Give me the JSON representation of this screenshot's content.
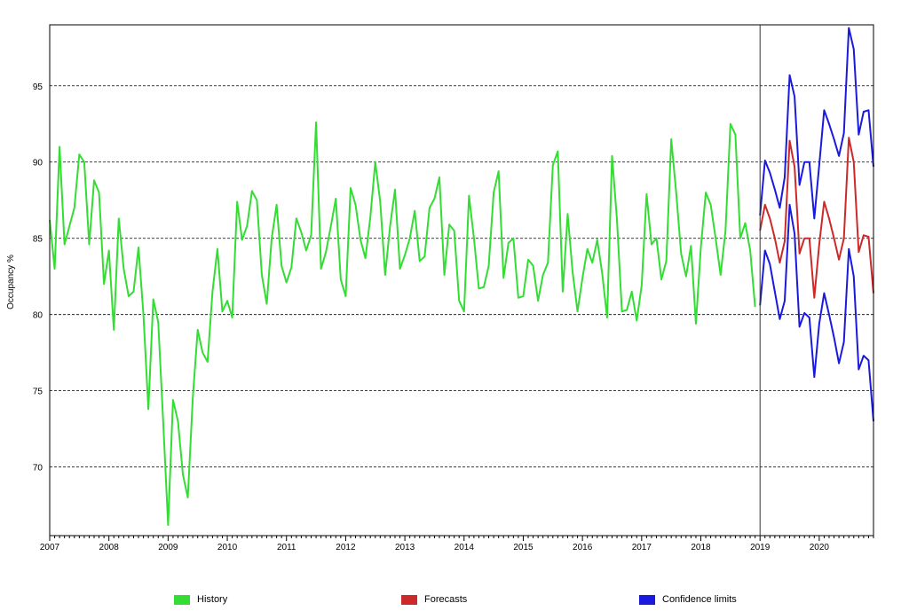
{
  "chart_data": {
    "type": "line",
    "ylabel": "Occupancy %",
    "xlabel": "",
    "x_start": "2007-01",
    "frequency": "monthly",
    "ylim": [
      65.5,
      99.0
    ],
    "yticks": [
      70,
      75,
      80,
      85,
      90,
      95
    ],
    "xticks": [
      "2007",
      "2008",
      "2009",
      "2010",
      "2011",
      "2012",
      "2013",
      "2014",
      "2015",
      "2016",
      "2017",
      "2018",
      "2019",
      "2020"
    ],
    "grid": "horizontal dashed",
    "forecast_boundary": "2019-01",
    "series": [
      {
        "name": "History",
        "color": "#33dd33",
        "x_start": "2007-01",
        "values": [
          86.2,
          83.0,
          91.0,
          84.6,
          85.8,
          87.0,
          90.5,
          90.0,
          84.6,
          88.8,
          88.0,
          82.0,
          84.2,
          79.0,
          86.3,
          83.0,
          81.2,
          81.5,
          84.4,
          80.0,
          73.8,
          81.0,
          79.5,
          73.0,
          66.2,
          74.4,
          73.0,
          69.5,
          68.0,
          74.5,
          79.0,
          77.5,
          76.9,
          81.5,
          84.3,
          80.2,
          80.9,
          79.8,
          87.4,
          84.9,
          85.8,
          88.1,
          87.5,
          82.6,
          80.7,
          85.0,
          87.2,
          83.2,
          82.1,
          83.1,
          86.3,
          85.4,
          84.2,
          85.2,
          92.6,
          83.0,
          84.1,
          85.8,
          87.6,
          82.3,
          81.2,
          88.3,
          87.2,
          84.9,
          83.7,
          86.4,
          90.0,
          87.4,
          82.6,
          85.8,
          88.2,
          83.0,
          83.9,
          85.0,
          86.8,
          83.5,
          83.8,
          87.0,
          87.6,
          89.0,
          82.6,
          85.9,
          85.5,
          80.9,
          80.2,
          87.8,
          85.0,
          81.7,
          81.8,
          83.2,
          88.0,
          89.4,
          82.4,
          84.7,
          85.0,
          81.1,
          81.2,
          83.6,
          83.2,
          80.9,
          82.6,
          83.4,
          89.8,
          90.7,
          81.5,
          86.6,
          82.8,
          80.2,
          82.4,
          84.3,
          83.4,
          84.9,
          82.7,
          79.8,
          90.4,
          86.2,
          80.2,
          80.3,
          81.5,
          79.6,
          81.9,
          87.9,
          84.6,
          85.0,
          82.3,
          83.5,
          91.5,
          88.0,
          84.0,
          82.5,
          84.5,
          79.4,
          84.4,
          88.0,
          87.2,
          85.0,
          82.6,
          85.5,
          92.5,
          91.8,
          85.0,
          86.0,
          84.2,
          80.5
        ]
      },
      {
        "name": "Forecasts",
        "color": "#cc2a2a",
        "x_start": "2019-01",
        "values": [
          85.5,
          87.2,
          86.3,
          85.0,
          83.4,
          84.8,
          91.4,
          89.7,
          84.0,
          85.0,
          85.0,
          81.1,
          84.6,
          87.4,
          86.3,
          85.0,
          83.6,
          85.0,
          91.6,
          90.0,
          84.1,
          85.2,
          85.1,
          81.4
        ]
      },
      {
        "name": "Confidence limits",
        "color": "#1a1adf",
        "x_start": "2019-01",
        "upper": [
          86.5,
          90.1,
          89.3,
          88.2,
          87.0,
          89.0,
          95.7,
          94.3,
          88.5,
          90.0,
          90.0,
          86.3,
          89.8,
          93.4,
          92.5,
          91.5,
          90.4,
          91.9,
          98.8,
          97.4,
          91.8,
          93.3,
          93.4,
          89.7
        ],
        "lower": [
          80.6,
          84.2,
          83.3,
          81.5,
          79.7,
          80.9,
          87.2,
          85.3,
          79.2,
          80.1,
          79.8,
          75.9,
          79.4,
          81.4,
          80.0,
          78.5,
          76.8,
          78.2,
          84.3,
          82.5,
          76.4,
          77.3,
          77.0,
          73.0
        ]
      }
    ],
    "legend": {
      "placement": "bottom"
    }
  }
}
